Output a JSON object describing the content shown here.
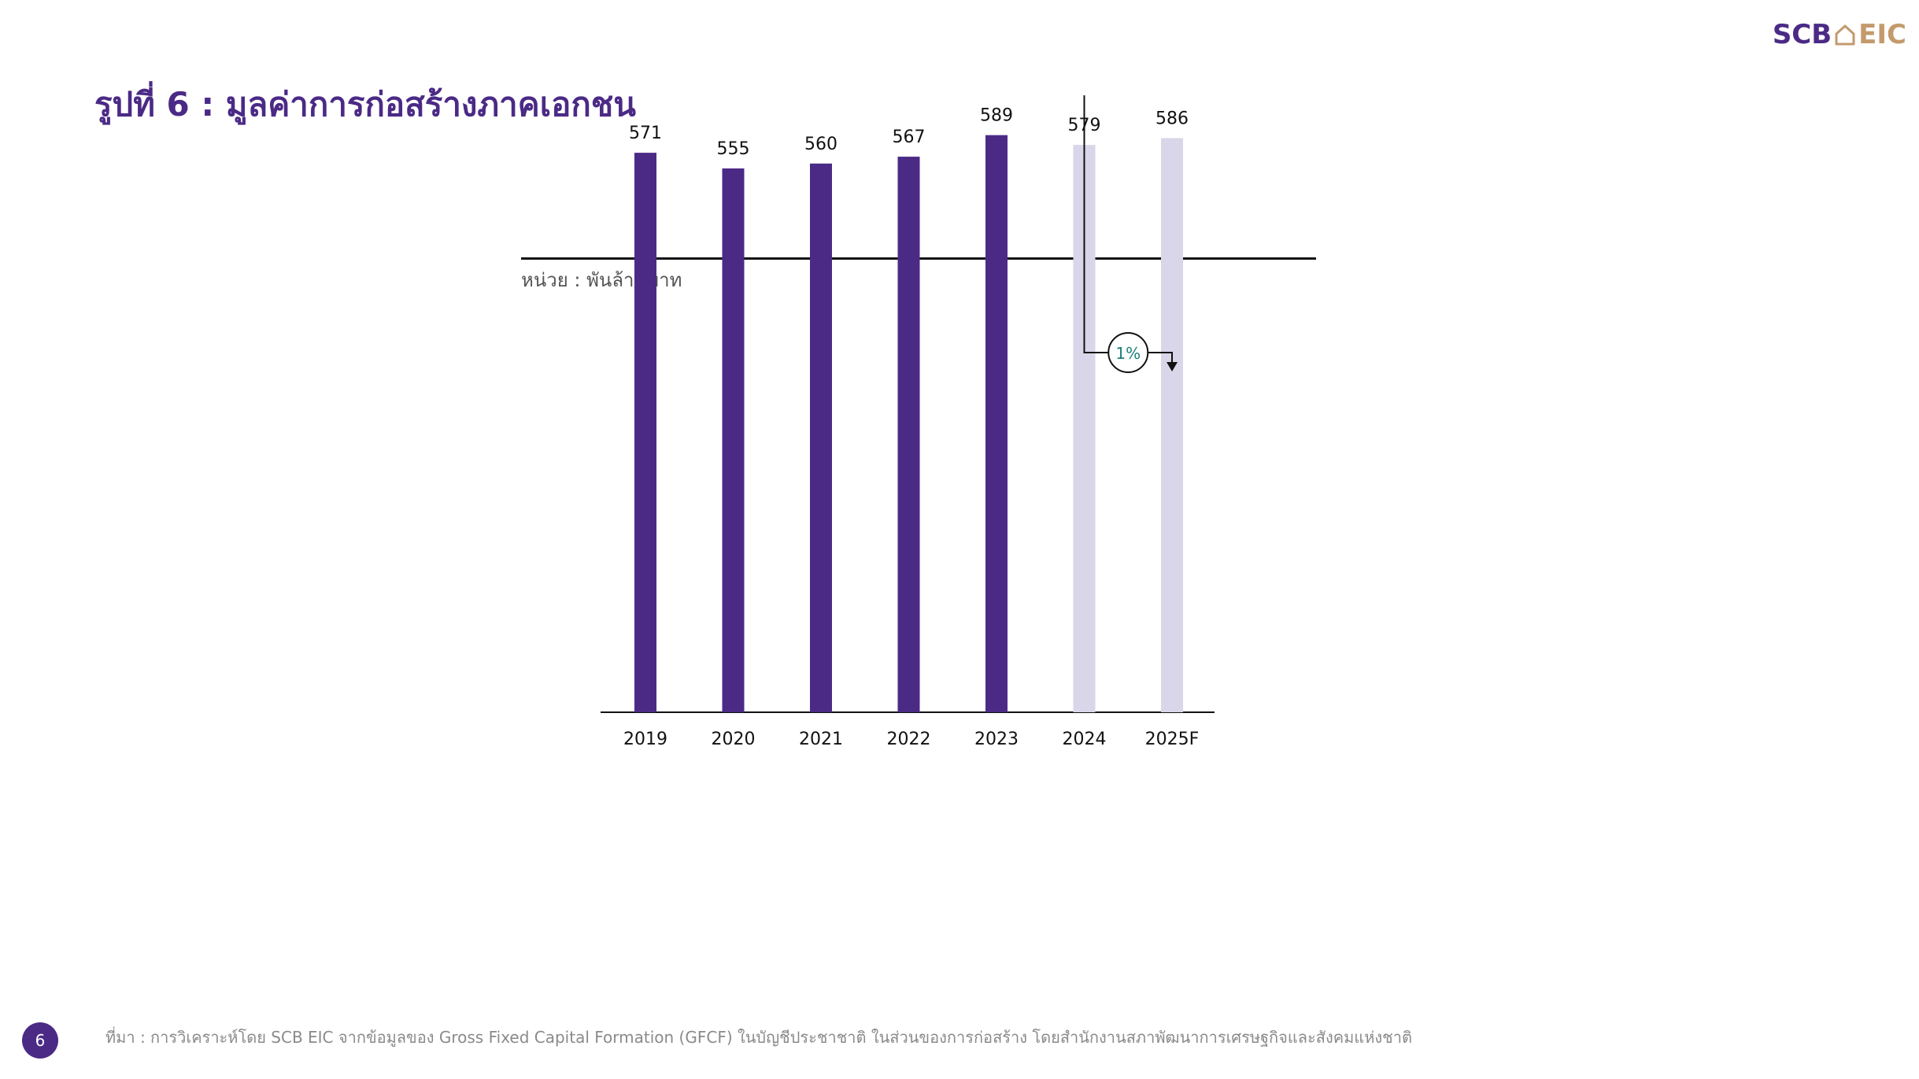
{
  "header": {
    "logo_left": "SCB",
    "logo_right": "EIC",
    "title": "รูปที่ 6 : มูลค่าการก่อสร้างภาคเอกชน"
  },
  "chart_unit": "หน่วย : พันล้านบาท",
  "chart_data": {
    "type": "bar",
    "title": "",
    "xlabel": "",
    "ylabel": "",
    "categories": [
      "2019",
      "2020",
      "2021",
      "2022",
      "2023",
      "2024",
      "2025F"
    ],
    "values": [
      571,
      555,
      560,
      567,
      589,
      579,
      586
    ],
    "value_labels": [
      "571",
      "555",
      "560",
      "567",
      "589",
      "579",
      "586"
    ],
    "bar_colors": [
      "#4b2a86",
      "#4b2a86",
      "#4b2a86",
      "#4b2a86",
      "#4b2a86",
      "#d9d6ea",
      "#d9d6ea"
    ],
    "ylim": [
      0,
      600
    ],
    "grid": false,
    "annotation": {
      "from": "2024",
      "to": "2025F",
      "label": "1%",
      "label_color": "#1a7f7a"
    }
  },
  "footer": {
    "page_number": "6",
    "source": "ที่มา : การวิเคราะห์โดย SCB EIC จากข้อมูลของ Gross Fixed Capital Formation (GFCF) ในบัญชีประชาชาติ ในส่วนของการก่อสร้าง โดยสำนักงานสภาพัฒนาการเศรษฐกิจและสังคมแห่งชาติ"
  },
  "colors": {
    "brand_purple": "#4b2a86",
    "brand_gold": "#c49a6c",
    "forecast_bar": "#d9d6ea"
  }
}
